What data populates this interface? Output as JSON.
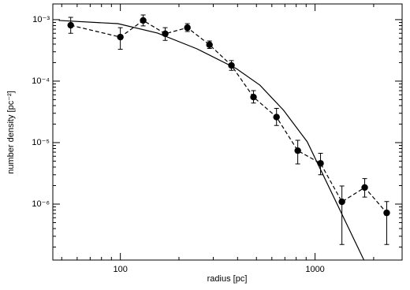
{
  "chart_data": {
    "type": "scatter-line",
    "xlabel": "radius [pc]",
    "ylabel": "number density [pc⁻²]",
    "xscale": "log",
    "yscale": "log",
    "xlim": [
      45,
      2800
    ],
    "ylim": [
      1.23e-07,
      0.0018
    ],
    "xticks": [
      100,
      1000
    ],
    "yticks": [
      {
        "value": 0.001,
        "label": "10⁻³"
      },
      {
        "value": 0.0001,
        "label": "10⁻⁴"
      },
      {
        "value": 1e-05,
        "label": "10⁻⁵"
      },
      {
        "value": 1e-06,
        "label": "10⁻⁶"
      }
    ],
    "series": [
      {
        "color": "#000000",
        "line": "dashed",
        "markers": true,
        "x": [
          55.6,
          100,
          131,
          170,
          221,
          287,
          372,
          483,
          634,
          815,
          1067,
          1374,
          1799,
          2334
        ],
        "values": [
          0.00081,
          0.00052,
          0.00097,
          0.00059,
          0.00074,
          0.00039,
          0.00018,
          5.5e-05,
          2.6e-05,
          7.4e-06,
          4.6e-06,
          1.09e-06,
          1.86e-06,
          7.2e-07
        ],
        "lower": [
          0.0006,
          0.00033,
          0.00079,
          0.00046,
          0.00064,
          0.00034,
          0.00015,
          4.4e-05,
          1.9e-05,
          4.5e-06,
          3e-06,
          2.2e-07,
          1.3e-06,
          2.2e-07
        ],
        "upper": [
          0.00109,
          0.00074,
          0.00119,
          0.00074,
          0.00086,
          0.00045,
          0.000216,
          7e-05,
          3.6e-05,
          1.09e-05,
          6.7e-06,
          1.97e-06,
          2.6e-06,
          1.1e-06
        ]
      },
      {
        "color": "#000000",
        "line": "solid",
        "markers": false,
        "x": [
          48.3,
          97.2,
          155,
          247,
          394,
          521,
          689,
          912,
          1298,
          1782
        ],
        "values": [
          0.00097,
          0.00086,
          0.000605,
          0.000336,
          0.00016,
          8.6e-05,
          3.36e-05,
          1.03e-05,
          1e-06,
          1.23e-07
        ]
      }
    ]
  }
}
